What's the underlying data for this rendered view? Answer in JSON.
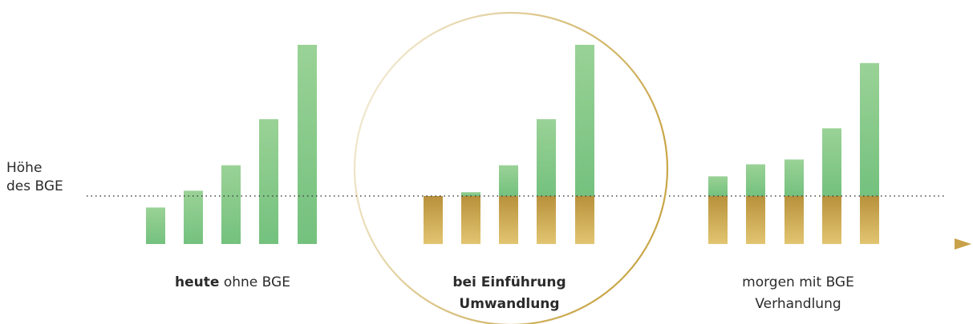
{
  "reference_label": {
    "line1": "Höhe",
    "line2": "des BGE"
  },
  "captions": {
    "heute": {
      "bold": "heute",
      "rest": " ohne BGE"
    },
    "einfuehrung": {
      "line1": "bei Einführung",
      "line2": "Umwandlung"
    },
    "morgen": {
      "line1": "morgen mit BGE",
      "line2": "Verhandlung"
    }
  },
  "colors": {
    "green_top": "#9ad296",
    "green_bottom": "#74c17e",
    "gold_top": "#b8913c",
    "gold_bottom": "#e2c571",
    "axis": "#c8a24a",
    "circle": "#c9a648",
    "dotted": "#444444"
  },
  "chart_data": {
    "type": "bar",
    "reference_level": 1.0,
    "groups": [
      {
        "name": "heute ohne BGE",
        "series": [
          {
            "name": "",
            "values": [
              0.76,
              1.11,
              1.64,
              2.6,
              4.15
            ]
          }
        ]
      },
      {
        "name": "bei Einführung",
        "series": [
          {
            "name": "",
            "values": [
              1.0,
              1.0,
              1.0,
              1.0,
              1.0
            ]
          },
          {
            "name": "",
            "values": [
              0.0,
              0.08,
              0.64,
              1.6,
              3.15
            ]
          }
        ]
      },
      {
        "name": "morgen mit BGE",
        "series": [
          {
            "name": "",
            "values": [
              1.0,
              1.0,
              1.0,
              1.0,
              1.0
            ]
          },
          {
            "name": "",
            "values": [
              0.41,
              0.66,
              0.76,
              1.41,
              2.77
            ]
          }
        ]
      }
    ]
  }
}
